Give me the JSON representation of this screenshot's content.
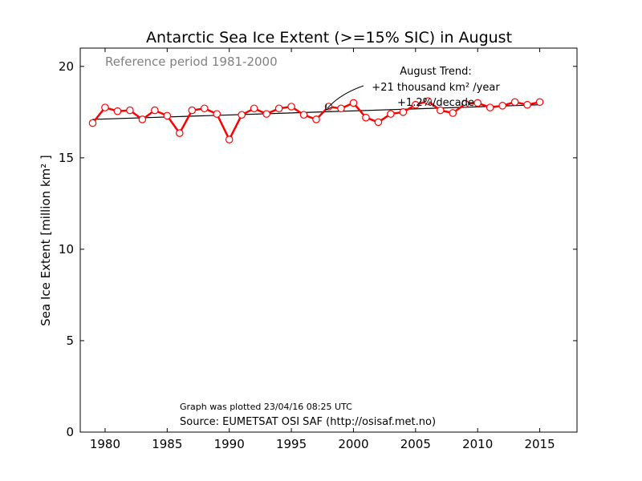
{
  "chart_data": {
    "type": "line",
    "title": "Antarctic Sea Ice Extent (>=15% SIC) in August",
    "ylabel": "Sea Ice Extent [million km² ]",
    "xlabel": "",
    "xlim": [
      1978,
      2018
    ],
    "ylim": [
      0,
      21
    ],
    "xticks": [
      1980,
      1985,
      1990,
      1995,
      2000,
      2005,
      2010,
      2015
    ],
    "yticks": [
      0,
      5,
      10,
      15,
      20
    ],
    "x": [
      1979,
      1980,
      1981,
      1982,
      1983,
      1984,
      1985,
      1986,
      1987,
      1988,
      1989,
      1990,
      1991,
      1992,
      1993,
      1994,
      1995,
      1996,
      1997,
      1998,
      1999,
      2000,
      2001,
      2002,
      2003,
      2004,
      2005,
      2006,
      2007,
      2008,
      2009,
      2010,
      2011,
      2012,
      2013,
      2014,
      2015
    ],
    "series": [
      {
        "color": "#ff0000",
        "marker": "open-circle",
        "values": [
          16.9,
          17.75,
          17.55,
          17.6,
          17.1,
          17.6,
          17.3,
          16.35,
          17.6,
          17.7,
          17.4,
          16.0,
          17.35,
          17.7,
          17.4,
          17.7,
          17.8,
          17.35,
          17.1,
          17.8,
          17.7,
          18.0,
          17.2,
          16.95,
          17.4,
          17.5,
          17.9,
          18.1,
          17.6,
          17.45,
          17.95,
          18.0,
          17.75,
          17.85,
          18.05,
          17.9,
          18.05
        ]
      }
    ],
    "trend": {
      "color": "#000000",
      "start": [
        1979,
        17.1
      ],
      "end": [
        2015,
        17.9
      ]
    },
    "grid": false,
    "annotations": {
      "reference": "Reference period 1981-2000",
      "trend_title": "August Trend:",
      "trend_line1": "+21 thousand km² /year",
      "trend_line2": "+1.2%/decade",
      "plotted": "Graph was plotted 23/04/16 08:25 UTC",
      "source": "Source: EUMETSAT OSI SAF (http://osisaf.met.no)"
    }
  }
}
